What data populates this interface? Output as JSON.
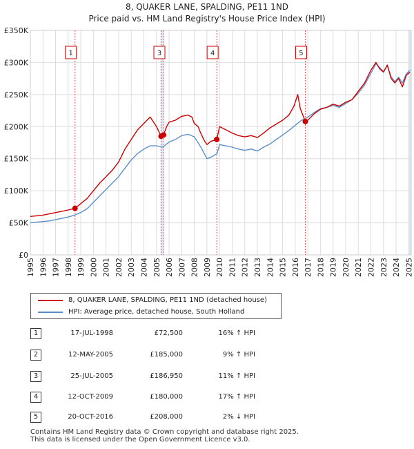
{
  "title_line1": "8, QUAKER LANE, SPALDING, PE11 1ND",
  "title_line2": "Price paid vs. HM Land Registry's House Price Index (HPI)",
  "chart_data": {
    "type": "line",
    "title": "Price paid vs. HM Land Registry's House Price Index (HPI)",
    "xlabel": "",
    "ylabel": "",
    "xlim": [
      1995.0,
      2025.2
    ],
    "ylim": [
      0,
      350000
    ],
    "x_ticks": [
      "1995",
      "1996",
      "1997",
      "1998",
      "1999",
      "2000",
      "2001",
      "2002",
      "2003",
      "2004",
      "2005",
      "2006",
      "2007",
      "2008",
      "2009",
      "2010",
      "2011",
      "2012",
      "2013",
      "2014",
      "2015",
      "2016",
      "2017",
      "2018",
      "2019",
      "2020",
      "2021",
      "2022",
      "2023",
      "2024",
      "2025"
    ],
    "y_ticks": [
      {
        "value": 0,
        "label": "£0"
      },
      {
        "value": 50000,
        "label": "£50K"
      },
      {
        "value": 100000,
        "label": "£100K"
      },
      {
        "value": 150000,
        "label": "£150K"
      },
      {
        "value": 200000,
        "label": "£200K"
      },
      {
        "value": 250000,
        "label": "£250K"
      },
      {
        "value": 300000,
        "label": "£300K"
      },
      {
        "value": 350000,
        "label": "£350K"
      }
    ],
    "series": [
      {
        "name": "8, QUAKER LANE, SPALDING, PE11 1ND (detached house)",
        "color": "#cc0000",
        "x": [
          1995.0,
          1995.5,
          1996.0,
          1996.5,
          1997.0,
          1997.5,
          1998.0,
          1998.54,
          1999.0,
          1999.5,
          2000.0,
          2000.5,
          2001.0,
          2001.5,
          2002.0,
          2002.5,
          2003.0,
          2003.5,
          2004.0,
          2004.5,
          2005.0,
          2005.36,
          2005.56,
          2005.8,
          2006.0,
          2006.5,
          2007.0,
          2007.5,
          2007.8,
          2008.0,
          2008.3,
          2008.5,
          2008.8,
          2009.0,
          2009.3,
          2009.78,
          2010.0,
          2010.5,
          2011.0,
          2011.5,
          2012.0,
          2012.5,
          2013.0,
          2013.5,
          2014.0,
          2014.5,
          2015.0,
          2015.5,
          2015.9,
          2016.2,
          2016.4,
          2016.8,
          2017.0,
          2017.5,
          2018.0,
          2018.5,
          2019.0,
          2019.5,
          2020.0,
          2020.5,
          2021.0,
          2021.5,
          2022.0,
          2022.4,
          2022.7,
          2023.0,
          2023.3,
          2023.6,
          2023.9,
          2024.2,
          2024.5,
          2024.8,
          2025.1
        ],
        "values": [
          60000,
          61000,
          62000,
          64000,
          66000,
          68000,
          70000,
          72500,
          80000,
          88000,
          100000,
          112000,
          122000,
          132000,
          145000,
          165000,
          180000,
          195000,
          205000,
          215000,
          200000,
          185000,
          186950,
          200000,
          207000,
          210000,
          216000,
          218000,
          215000,
          205000,
          200000,
          190000,
          178000,
          172000,
          177000,
          180000,
          200000,
          195000,
          190000,
          186000,
          184000,
          186000,
          183000,
          190000,
          198000,
          204000,
          210000,
          218000,
          232000,
          250000,
          228000,
          208000,
          210000,
          220000,
          227000,
          230000,
          235000,
          232000,
          238000,
          242000,
          255000,
          268000,
          288000,
          300000,
          290000,
          285000,
          296000,
          275000,
          268000,
          275000,
          262000,
          280000,
          285000
        ]
      },
      {
        "name": "HPI: Average price, detached house, South Holland",
        "color": "#5b8ec8",
        "x": [
          1995.0,
          1995.5,
          1996.0,
          1996.5,
          1997.0,
          1997.5,
          1998.0,
          1998.5,
          1999.0,
          1999.5,
          2000.0,
          2000.5,
          2001.0,
          2001.5,
          2002.0,
          2002.5,
          2003.0,
          2003.5,
          2004.0,
          2004.5,
          2005.0,
          2005.5,
          2006.0,
          2006.5,
          2007.0,
          2007.5,
          2008.0,
          2008.3,
          2008.6,
          2009.0,
          2009.3,
          2009.8,
          2010.0,
          2010.5,
          2011.0,
          2011.5,
          2012.0,
          2012.5,
          2013.0,
          2013.5,
          2014.0,
          2014.5,
          2015.0,
          2015.5,
          2016.0,
          2016.5,
          2016.8,
          2017.0,
          2017.5,
          2018.0,
          2018.5,
          2019.0,
          2019.5,
          2020.0,
          2020.5,
          2021.0,
          2021.5,
          2022.0,
          2022.4,
          2022.7,
          2023.0,
          2023.3,
          2023.6,
          2023.9,
          2024.2,
          2024.5,
          2024.8,
          2025.1
        ],
        "values": [
          50000,
          51000,
          52000,
          53000,
          55000,
          57000,
          59000,
          62000,
          66000,
          72000,
          82000,
          92000,
          102000,
          112000,
          122000,
          135000,
          148000,
          158000,
          165000,
          170000,
          170000,
          168000,
          176000,
          180000,
          186000,
          188000,
          184000,
          175000,
          165000,
          150000,
          152000,
          158000,
          172000,
          170000,
          168000,
          165000,
          163000,
          165000,
          162000,
          168000,
          173000,
          180000,
          187000,
          194000,
          202000,
          210000,
          212000,
          215000,
          222000,
          228000,
          230000,
          233000,
          230000,
          236000,
          242000,
          252000,
          265000,
          283000,
          298000,
          292000,
          286000,
          295000,
          278000,
          270000,
          277000,
          268000,
          282000,
          288000
        ]
      }
    ],
    "transactions": [
      {
        "num": "1",
        "x": 1998.54,
        "value": 72500,
        "date": "17-JUL-1998",
        "price": "£72,500",
        "hpi": "16% ↑ HPI"
      },
      {
        "num": "2",
        "x": 2005.36,
        "value": 185000,
        "date": "12-MAY-2005",
        "price": "£185,000",
        "hpi": "9% ↑ HPI"
      },
      {
        "num": "3",
        "x": 2005.56,
        "value": 186950,
        "date": "25-JUL-2005",
        "price": "£186,950",
        "hpi": "11% ↑ HPI"
      },
      {
        "num": "4",
        "x": 2009.78,
        "value": 180000,
        "date": "12-OCT-2009",
        "price": "£180,000",
        "hpi": "17% ↑ HPI"
      },
      {
        "num": "5",
        "x": 2016.8,
        "value": 208000,
        "date": "20-OCT-2016",
        "price": "£208,000",
        "hpi": "2% ↓ HPI"
      }
    ],
    "marker_labels": [
      "1",
      "3",
      "4",
      "5"
    ],
    "shade_color": "#dde6f4",
    "grid": true
  },
  "legend": {
    "items": [
      {
        "label": "8, QUAKER LANE, SPALDING, PE11 1ND (detached house)",
        "color": "#cc0000"
      },
      {
        "label": "HPI: Average price, detached house, South Holland",
        "color": "#5b8ec8"
      }
    ]
  },
  "footer": {
    "line1": "Contains HM Land Registry data © Crown copyright and database right 2025.",
    "line2": "This data is licensed under the Open Government Licence v3.0."
  }
}
